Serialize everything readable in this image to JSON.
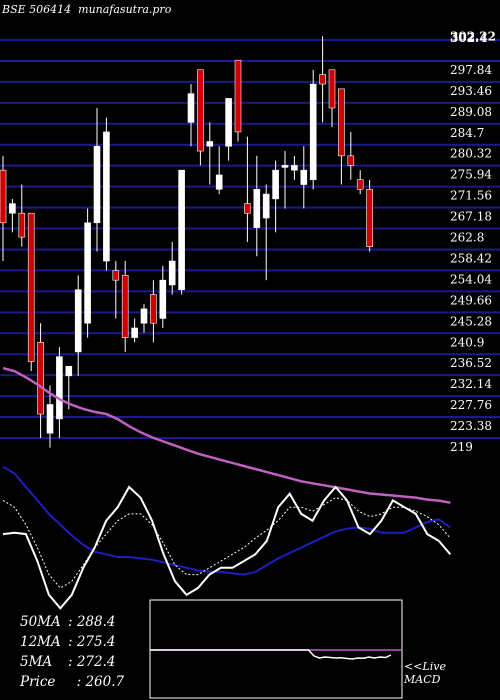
{
  "header": {
    "symbol": "BSE 506414",
    "site": "munafasutra.pro"
  },
  "chart_data": {
    "type": "candlestick",
    "price_axis": {
      "range": [
        215,
        303.5
      ],
      "ticks": [
        302.22,
        297.84,
        293.46,
        289.08,
        284.7,
        280.32,
        275.94,
        271.56,
        267.18,
        262.8,
        258.42,
        254.04,
        249.66,
        245.28,
        240.9,
        236.52,
        232.14,
        227.76,
        223.38,
        219
      ],
      "top_labels": [
        "302.4",
        "302.22"
      ]
    },
    "candles": [
      {
        "o": 275,
        "h": 278,
        "l": 256,
        "c": 264
      },
      {
        "o": 266,
        "h": 269,
        "l": 262,
        "c": 268
      },
      {
        "o": 266,
        "h": 272,
        "l": 259,
        "c": 261
      },
      {
        "o": 266,
        "h": 266,
        "l": 233,
        "c": 235
      },
      {
        "o": 239,
        "h": 243,
        "l": 219,
        "c": 224
      },
      {
        "o": 220,
        "h": 230,
        "l": 217,
        "c": 226
      },
      {
        "o": 223,
        "h": 238,
        "l": 219,
        "c": 236
      },
      {
        "o": 232,
        "h": 234,
        "l": 225,
        "c": 234
      },
      {
        "o": 237,
        "h": 253,
        "l": 232,
        "c": 250
      },
      {
        "o": 243,
        "h": 267,
        "l": 240,
        "c": 264
      },
      {
        "o": 264,
        "h": 288,
        "l": 258,
        "c": 280
      },
      {
        "o": 256,
        "h": 286,
        "l": 254,
        "c": 283
      },
      {
        "o": 254,
        "h": 256,
        "l": 244,
        "c": 252
      },
      {
        "o": 253,
        "h": 256,
        "l": 237,
        "c": 240
      },
      {
        "o": 240,
        "h": 244,
        "l": 239,
        "c": 242
      },
      {
        "o": 243,
        "h": 247,
        "l": 241,
        "c": 246
      },
      {
        "o": 249,
        "h": 252,
        "l": 239,
        "c": 243
      },
      {
        "o": 244,
        "h": 255,
        "l": 242,
        "c": 252
      },
      {
        "o": 251,
        "h": 260,
        "l": 249,
        "c": 256
      },
      {
        "o": 250,
        "h": 275,
        "l": 249,
        "c": 275
      },
      {
        "o": 285,
        "h": 293,
        "l": 280,
        "c": 291
      },
      {
        "o": 296,
        "h": 296,
        "l": 276,
        "c": 279
      },
      {
        "o": 280,
        "h": 285,
        "l": 272,
        "c": 281
      },
      {
        "o": 271,
        "h": 280,
        "l": 270,
        "c": 274
      },
      {
        "o": 280,
        "h": 290,
        "l": 277,
        "c": 290
      },
      {
        "o": 298,
        "h": 298,
        "l": 281,
        "c": 283
      },
      {
        "o": 268,
        "h": 282,
        "l": 260,
        "c": 266
      },
      {
        "o": 263,
        "h": 278,
        "l": 257,
        "c": 271
      },
      {
        "o": 265,
        "h": 272,
        "l": 252,
        "c": 270
      },
      {
        "o": 269,
        "h": 277,
        "l": 262,
        "c": 275
      },
      {
        "o": 276,
        "h": 279,
        "l": 267,
        "c": 276
      },
      {
        "o": 275,
        "h": 278,
        "l": 273,
        "c": 276
      },
      {
        "o": 272,
        "h": 280,
        "l": 267,
        "c": 275
      },
      {
        "o": 273,
        "h": 296,
        "l": 271,
        "c": 293
      },
      {
        "o": 295,
        "h": 303,
        "l": 285,
        "c": 293
      },
      {
        "o": 296,
        "h": 296,
        "l": 284,
        "c": 288
      },
      {
        "o": 292,
        "h": 292,
        "l": 272,
        "c": 278
      },
      {
        "o": 278,
        "h": 283,
        "l": 273,
        "c": 276
      },
      {
        "o": 273,
        "h": 275,
        "l": 270,
        "c": 271
      },
      {
        "o": 271,
        "h": 273,
        "l": 258,
        "c": 259
      }
    ],
    "ma_overlay_purple": [
      223.9,
      223.6,
      223.0,
      222.3,
      221.5,
      220.8,
      220.3,
      219.9,
      219.6,
      219.4,
      218.9,
      218.2,
      217.6,
      217.1,
      216.7,
      216.3,
      215.9,
      215.5,
      215.2,
      214.9,
      214.6,
      214.3,
      214.0,
      213.7,
      213.4,
      213.1,
      212.8,
      212.6,
      212.4,
      212.2,
      212.0,
      211.8,
      211.6,
      211.5,
      211.4,
      211.3,
      211.2,
      211.0,
      210.9,
      210.7
    ],
    "indicator_panel": {
      "blue_line": [
        0.85,
        0.8,
        0.7,
        0.6,
        0.5,
        0.42,
        0.34,
        0.27,
        0.22,
        0.2,
        0.18,
        0.18,
        0.17,
        0.16,
        0.14,
        0.12,
        0.1,
        0.08,
        0.07,
        0.07,
        0.06,
        0.05,
        0.07,
        0.12,
        0.17,
        0.21,
        0.25,
        0.29,
        0.33,
        0.37,
        0.39,
        0.4,
        0.39,
        0.36,
        0.36,
        0.36,
        0.4,
        0.44,
        0.46,
        0.4
      ],
      "white_line": [
        0.35,
        0.36,
        0.35,
        0.15,
        -0.1,
        -0.2,
        -0.1,
        0.1,
        0.25,
        0.45,
        0.55,
        0.7,
        0.62,
        0.45,
        0.2,
        0.0,
        -0.1,
        -0.05,
        0.05,
        0.1,
        0.1,
        0.15,
        0.2,
        0.3,
        0.55,
        0.65,
        0.5,
        0.45,
        0.6,
        0.7,
        0.6,
        0.4,
        0.35,
        0.45,
        0.6,
        0.55,
        0.5,
        0.35,
        0.3,
        0.2
      ],
      "dotted_line": [
        0.6,
        0.55,
        0.42,
        0.25,
        0.05,
        -0.05,
        0.0,
        0.12,
        0.25,
        0.35,
        0.45,
        0.5,
        0.5,
        0.42,
        0.28,
        0.12,
        0.05,
        0.05,
        0.1,
        0.15,
        0.2,
        0.25,
        0.32,
        0.38,
        0.45,
        0.55,
        0.55,
        0.52,
        0.57,
        0.62,
        0.6,
        0.52,
        0.48,
        0.5,
        0.55,
        0.55,
        0.52,
        0.48,
        0.42,
        0.32
      ]
    },
    "macd_inset": {
      "baseline_level": 0,
      "white_line": [
        0,
        0,
        0,
        0,
        0,
        0,
        0,
        0,
        -0.6,
        -0.8,
        -0.7,
        -0.75,
        -0.8,
        -0.78,
        -0.85,
        -0.9,
        -0.8,
        -0.82,
        -0.7,
        -0.8,
        -0.7,
        -0.75,
        -0.5
      ]
    },
    "colors": {
      "bull": "#ffffff",
      "bear": "#cc0000",
      "grid": "#1a1a8c",
      "ma_purple": "#c060c0",
      "ind_blue": "#1f1fbf",
      "ind_white": "#ffffff"
    }
  },
  "moving_averages": [
    {
      "label": "50MA",
      "value": "288.4"
    },
    {
      "label": "12MA",
      "value": "275.4"
    },
    {
      "label": "5MA",
      "value": "272.4"
    },
    {
      "label": "Price",
      "value": "260.7"
    }
  ],
  "macd_label": {
    "prefix": "<<Live",
    "name": "MACD"
  }
}
